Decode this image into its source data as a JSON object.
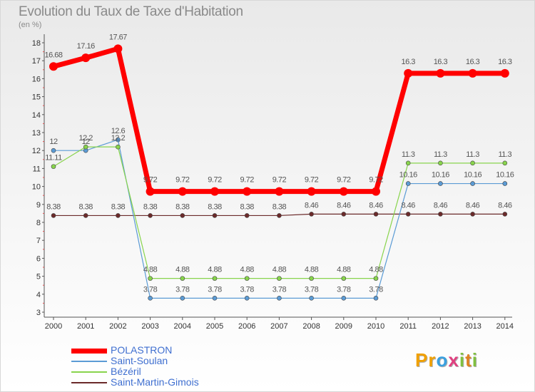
{
  "title": "Evolution du Taux de Taxe d'Habitation",
  "unit_label": "(en %)",
  "logo": {
    "text": "Proxiti",
    "letters": [
      "P",
      "r",
      "o",
      "x",
      "i",
      "t",
      "i"
    ],
    "letter_colors": [
      "#f0a000",
      "#f0a000",
      "#3aa0e0",
      "#e04080",
      "#80c040",
      "#e08020",
      "#80c040"
    ]
  },
  "chart_data": {
    "type": "line",
    "x": [
      "2000",
      "2001",
      "2002",
      "2003",
      "2004",
      "2005",
      "2006",
      "2007",
      "2008",
      "2009",
      "2010",
      "2011",
      "2012",
      "2013",
      "2014"
    ],
    "ylim": [
      3,
      18
    ],
    "yticks": [
      "3",
      "4",
      "5",
      "6",
      "7",
      "8",
      "9",
      "10",
      "11",
      "12",
      "13",
      "14",
      "15",
      "16",
      "17",
      "18"
    ],
    "grid": false,
    "legend_position": "bottom-left",
    "series": [
      {
        "name": "POLASTRON",
        "color": "#ff0000",
        "values": [
          16.68,
          17.16,
          17.67,
          9.72,
          9.72,
          9.72,
          9.72,
          9.72,
          9.72,
          9.72,
          9.72,
          16.3,
          16.3,
          16.3,
          16.3
        ],
        "labels": [
          "16.68",
          "17.16",
          "17.67",
          "9.72",
          "9.72",
          "9.72",
          "9.72",
          "9.72",
          "9.72",
          "9.72",
          "9.72",
          "16.3",
          "16.3",
          "16.3",
          "16.3"
        ]
      },
      {
        "name": "Saint-Soulan",
        "color": "#5b9bd5",
        "values": [
          12,
          12,
          12.6,
          3.78,
          3.78,
          3.78,
          3.78,
          3.78,
          3.78,
          3.78,
          3.78,
          10.16,
          10.16,
          10.16,
          10.16
        ],
        "labels": [
          "12",
          "12",
          "12.6",
          "3.78",
          "3.78",
          "3.78",
          "3.78",
          "3.78",
          "3.78",
          "3.78",
          "3.78",
          "10.16",
          "10.16",
          "10.16",
          "10.16"
        ]
      },
      {
        "name": "Bézéril",
        "color": "#88d44c",
        "values": [
          11.11,
          12.2,
          12.2,
          4.88,
          4.88,
          4.88,
          4.88,
          4.88,
          4.88,
          4.88,
          4.88,
          11.3,
          11.3,
          11.3,
          11.3
        ],
        "labels": [
          "11.11",
          "12.2",
          "12.2",
          "4.88",
          "4.88",
          "4.88",
          "4.88",
          "4.88",
          "4.88",
          "4.88",
          "4.88",
          "11.3",
          "11.3",
          "11.3",
          "11.3"
        ]
      },
      {
        "name": "Saint-Martin-Gimois",
        "color": "#6b2a2a",
        "values": [
          8.38,
          8.38,
          8.38,
          8.38,
          8.38,
          8.38,
          8.38,
          8.38,
          8.46,
          8.46,
          8.46,
          8.46,
          8.46,
          8.46,
          8.46
        ],
        "labels": [
          "8.38",
          "8.38",
          "8.38",
          "8.38",
          "8.38",
          "8.38",
          "8.38",
          "8.38",
          "8.46",
          "8.46",
          "8.46",
          "8.46",
          "8.46",
          "8.46",
          "8.46"
        ]
      }
    ]
  }
}
